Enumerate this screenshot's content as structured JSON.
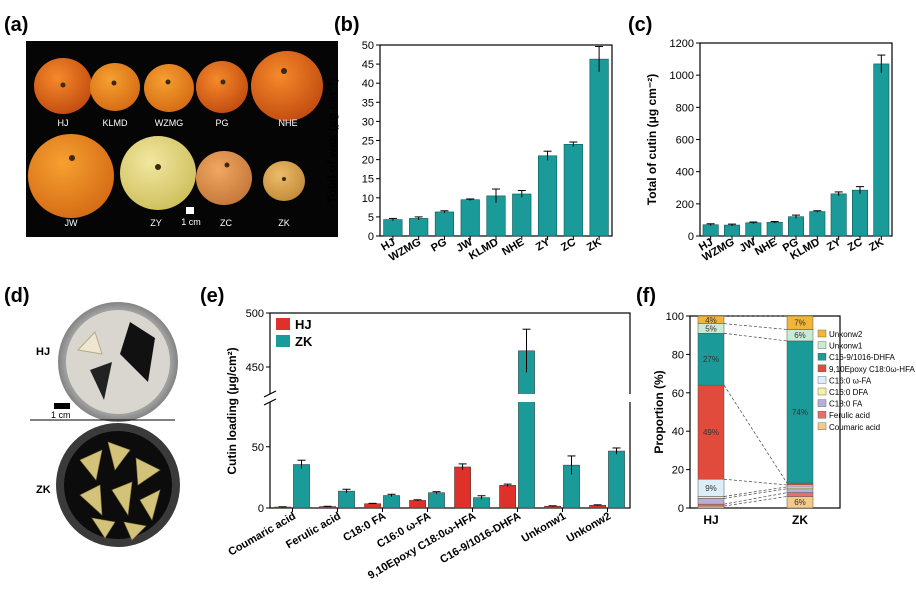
{
  "colors": {
    "teal": "#1a9a98",
    "red": "#e0302a",
    "photo_bg": "#000000",
    "dish_grey": "#8a8a8a"
  },
  "panel_labels": [
    "(a)",
    "(b)",
    "(c)",
    "(d)",
    "(e)",
    "(f)"
  ],
  "photo_a": {
    "fruits_top": [
      "HJ",
      "KLMD",
      "WZMG",
      "PG",
      "NHE"
    ],
    "fruits_bottom": [
      "JW",
      "ZY",
      "ZC",
      "ZK"
    ],
    "scale_label": "1 cm"
  },
  "photo_d": {
    "top_label": "HJ",
    "bottom_label": "ZK",
    "scale_label": "1 cm"
  },
  "chart_data": [
    {
      "panel": "(b)",
      "type": "bar",
      "categories": [
        "HJ",
        "WZMG",
        "PG",
        "JW",
        "KLMD",
        "NHE",
        "ZY",
        "ZC",
        "ZK"
      ],
      "values": [
        4.3,
        4.6,
        6.3,
        9.5,
        10.5,
        11.0,
        21.0,
        24.0,
        46.3
      ],
      "errors": [
        0.3,
        0.4,
        0.3,
        0.2,
        1.8,
        0.9,
        1.2,
        0.6,
        3.3
      ],
      "ylabel": "Total of wax (μg cm⁻²)",
      "ylim": [
        0,
        50
      ],
      "yticks": [
        0,
        5,
        10,
        15,
        20,
        25,
        30,
        35,
        40,
        45,
        50
      ]
    },
    {
      "panel": "(c)",
      "type": "bar",
      "categories": [
        "HJ",
        "WZMG",
        "JW",
        "NHE",
        "PG",
        "KLMD",
        "ZY",
        "ZC",
        "ZK"
      ],
      "values": [
        70,
        68,
        82,
        85,
        120,
        152,
        262,
        285,
        1070
      ],
      "errors": [
        6,
        6,
        5,
        5,
        10,
        5,
        12,
        22,
        55
      ],
      "ylabel": "Total of cutin (μg cm⁻²)",
      "ylim": [
        0,
        1200
      ],
      "yticks": [
        0,
        200,
        400,
        600,
        800,
        1000,
        1200
      ]
    },
    {
      "panel": "(e)",
      "type": "bar",
      "categories": [
        "Coumaric acid",
        "Ferulic acid",
        "C18:0 FA",
        "C16:0 ω-FA",
        "9,10Epoxy C18:0ω-HFA",
        "C16-9/1016-DHFA",
        "Unkonw1",
        "Unkonw2"
      ],
      "series": [
        {
          "name": "HJ",
          "values": [
            0.8,
            1.2,
            3.5,
            6.2,
            33.5,
            18.5,
            1.5,
            2.2
          ],
          "errors": [
            0.2,
            0.2,
            0.3,
            0.5,
            2.5,
            1.0,
            0.3,
            0.4
          ]
        },
        {
          "name": "ZK",
          "values": [
            35.5,
            13.8,
            10.2,
            12.5,
            8.5,
            465,
            35,
            46.5
          ],
          "errors": [
            3.5,
            1.5,
            1.0,
            0.8,
            1.5,
            20,
            7.5,
            2.5
          ]
        }
      ],
      "ylabel": "Cutin loading (μg/cm²)",
      "ylim": [
        0,
        500
      ],
      "axis_break": [
        80,
        425
      ],
      "yticks": [
        0,
        50,
        450,
        500
      ],
      "legend_position": "top-left"
    },
    {
      "panel": "(f)",
      "type": "bar",
      "stacked": true,
      "categories": [
        "HJ",
        "ZK"
      ],
      "ylabel": "Proportion (%)",
      "ylim": [
        0,
        100
      ],
      "yticks": [
        0,
        20,
        40,
        60,
        80,
        100
      ],
      "series": [
        {
          "name": "Coumaric acid",
          "color": "#f5c98a",
          "values": [
            1,
            6
          ],
          "labels": [
            "",
            "6%"
          ]
        },
        {
          "name": "Ferulic acid",
          "color": "#e8706a",
          "values": [
            1,
            2
          ],
          "labels": [
            "",
            ""
          ]
        },
        {
          "name": "C18:0 FA",
          "color": "#b8aed6",
          "values": [
            3,
            2
          ],
          "labels": [
            "",
            ""
          ]
        },
        {
          "name": "C16:0 DFA",
          "color": "#f6f0a2",
          "values": [
            1,
            1
          ],
          "labels": [
            "",
            ""
          ]
        },
        {
          "name": "C16:0 ω-FA",
          "color": "#dceef8",
          "values": [
            9,
            1
          ],
          "labels": [
            "9%",
            ""
          ]
        },
        {
          "name": "9,10Epoxy C18:0ω-HFA",
          "color": "#e04b3c",
          "values": [
            49,
            1
          ],
          "labels": [
            "49%",
            ""
          ]
        },
        {
          "name": "C16-9/1016-DHFA",
          "color": "#1a9a98",
          "values": [
            27,
            74
          ],
          "labels": [
            "27%",
            "74%"
          ]
        },
        {
          "name": "Unkonw1",
          "color": "#c9ebd4",
          "values": [
            5,
            6
          ],
          "labels": [
            "5%",
            "6%"
          ]
        },
        {
          "name": "Unkonw2",
          "color": "#f3b43a",
          "values": [
            4,
            7
          ],
          "labels": [
            "4%",
            "7%"
          ]
        }
      ],
      "legend_position": "right"
    }
  ]
}
